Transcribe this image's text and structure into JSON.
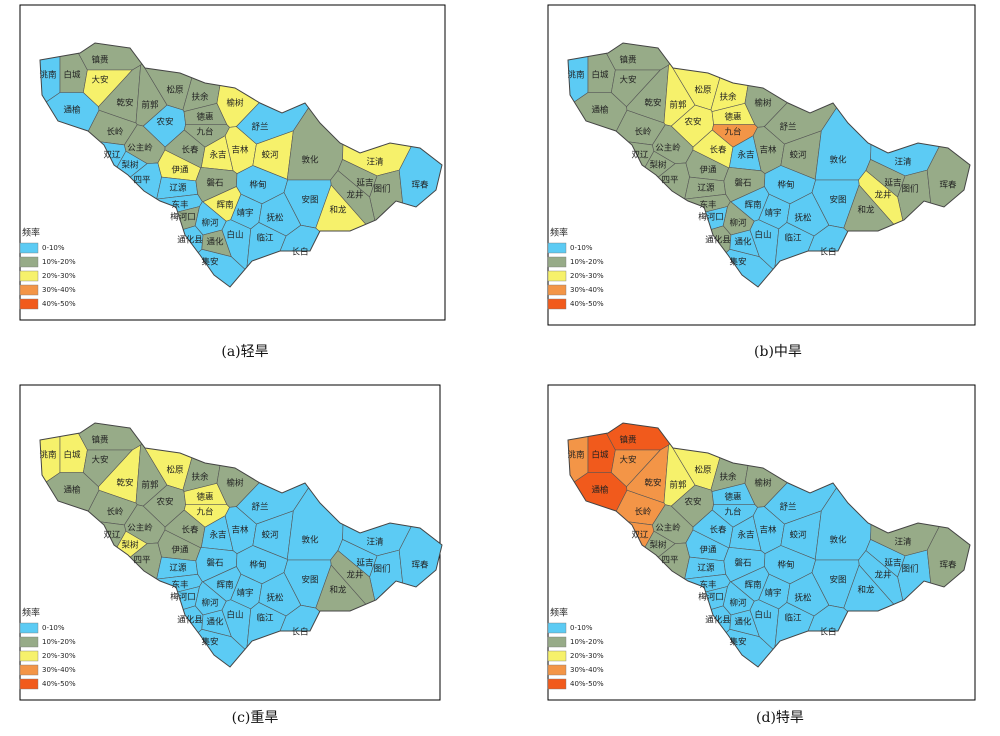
{
  "legend": {
    "title": "频率",
    "items": [
      {
        "label": "0-10%",
        "color": "#5ccbf4"
      },
      {
        "label": "10%-20%",
        "color": "#97ab88"
      },
      {
        "label": "20%-30%",
        "color": "#f6f16b"
      },
      {
        "label": "30%-40%",
        "color": "#f39547"
      },
      {
        "label": "40%-50%",
        "color": "#f15a1c"
      }
    ]
  },
  "counties": [
    "镇赉",
    "洮南",
    "白城",
    "通榆",
    "大安",
    "乾安",
    "前郭",
    "松原",
    "扶余",
    "榆树",
    "长岭",
    "农安",
    "德惠",
    "舒兰",
    "九台",
    "双辽",
    "公主岭",
    "长春",
    "永吉",
    "吉林",
    "蛟河",
    "敦化",
    "汪清",
    "梨树",
    "伊通",
    "四平",
    "辽源",
    "磐石",
    "桦甸",
    "延吉",
    "图们",
    "珲春",
    "龙井",
    "安图",
    "东丰",
    "梅河口",
    "辉南",
    "靖宇",
    "柳河",
    "抚松",
    "和龙",
    "通化县",
    "通化",
    "白山",
    "临江",
    "长白",
    "集安"
  ],
  "panels": [
    {
      "caption": "(a)轻旱",
      "levels": [
        1,
        0,
        1,
        0,
        2,
        1,
        1,
        1,
        1,
        2,
        1,
        0,
        1,
        0,
        1,
        0,
        1,
        1,
        2,
        2,
        2,
        1,
        2,
        0,
        2,
        0,
        0,
        1,
        0,
        1,
        1,
        0,
        1,
        0,
        0,
        1,
        2,
        0,
        0,
        0,
        2,
        0,
        1,
        0,
        0,
        0,
        0
      ]
    },
    {
      "caption": "(b)中旱",
      "levels": [
        1,
        0,
        1,
        1,
        1,
        1,
        2,
        2,
        2,
        1,
        1,
        2,
        2,
        1,
        3,
        1,
        1,
        2,
        0,
        1,
        1,
        0,
        0,
        1,
        1,
        1,
        1,
        1,
        0,
        1,
        1,
        1,
        2,
        0,
        1,
        0,
        0,
        0,
        1,
        0,
        1,
        1,
        0,
        0,
        0,
        0,
        0
      ]
    },
    {
      "caption": "(c)重旱",
      "levels": [
        1,
        2,
        2,
        1,
        1,
        2,
        1,
        2,
        1,
        1,
        1,
        1,
        2,
        0,
        2,
        1,
        1,
        1,
        0,
        0,
        0,
        0,
        0,
        2,
        1,
        1,
        0,
        0,
        0,
        0,
        0,
        0,
        1,
        0,
        0,
        0,
        0,
        0,
        0,
        0,
        1,
        0,
        0,
        0,
        0,
        0,
        0
      ]
    },
    {
      "caption": "(d)特旱",
      "levels": [
        4,
        3,
        4,
        4,
        3,
        3,
        2,
        2,
        1,
        1,
        3,
        1,
        0,
        0,
        0,
        3,
        1,
        0,
        0,
        0,
        0,
        0,
        1,
        1,
        0,
        1,
        0,
        0,
        0,
        0,
        0,
        1,
        0,
        0,
        0,
        0,
        0,
        0,
        0,
        0,
        0,
        0,
        0,
        0,
        0,
        0,
        0
      ]
    }
  ]
}
